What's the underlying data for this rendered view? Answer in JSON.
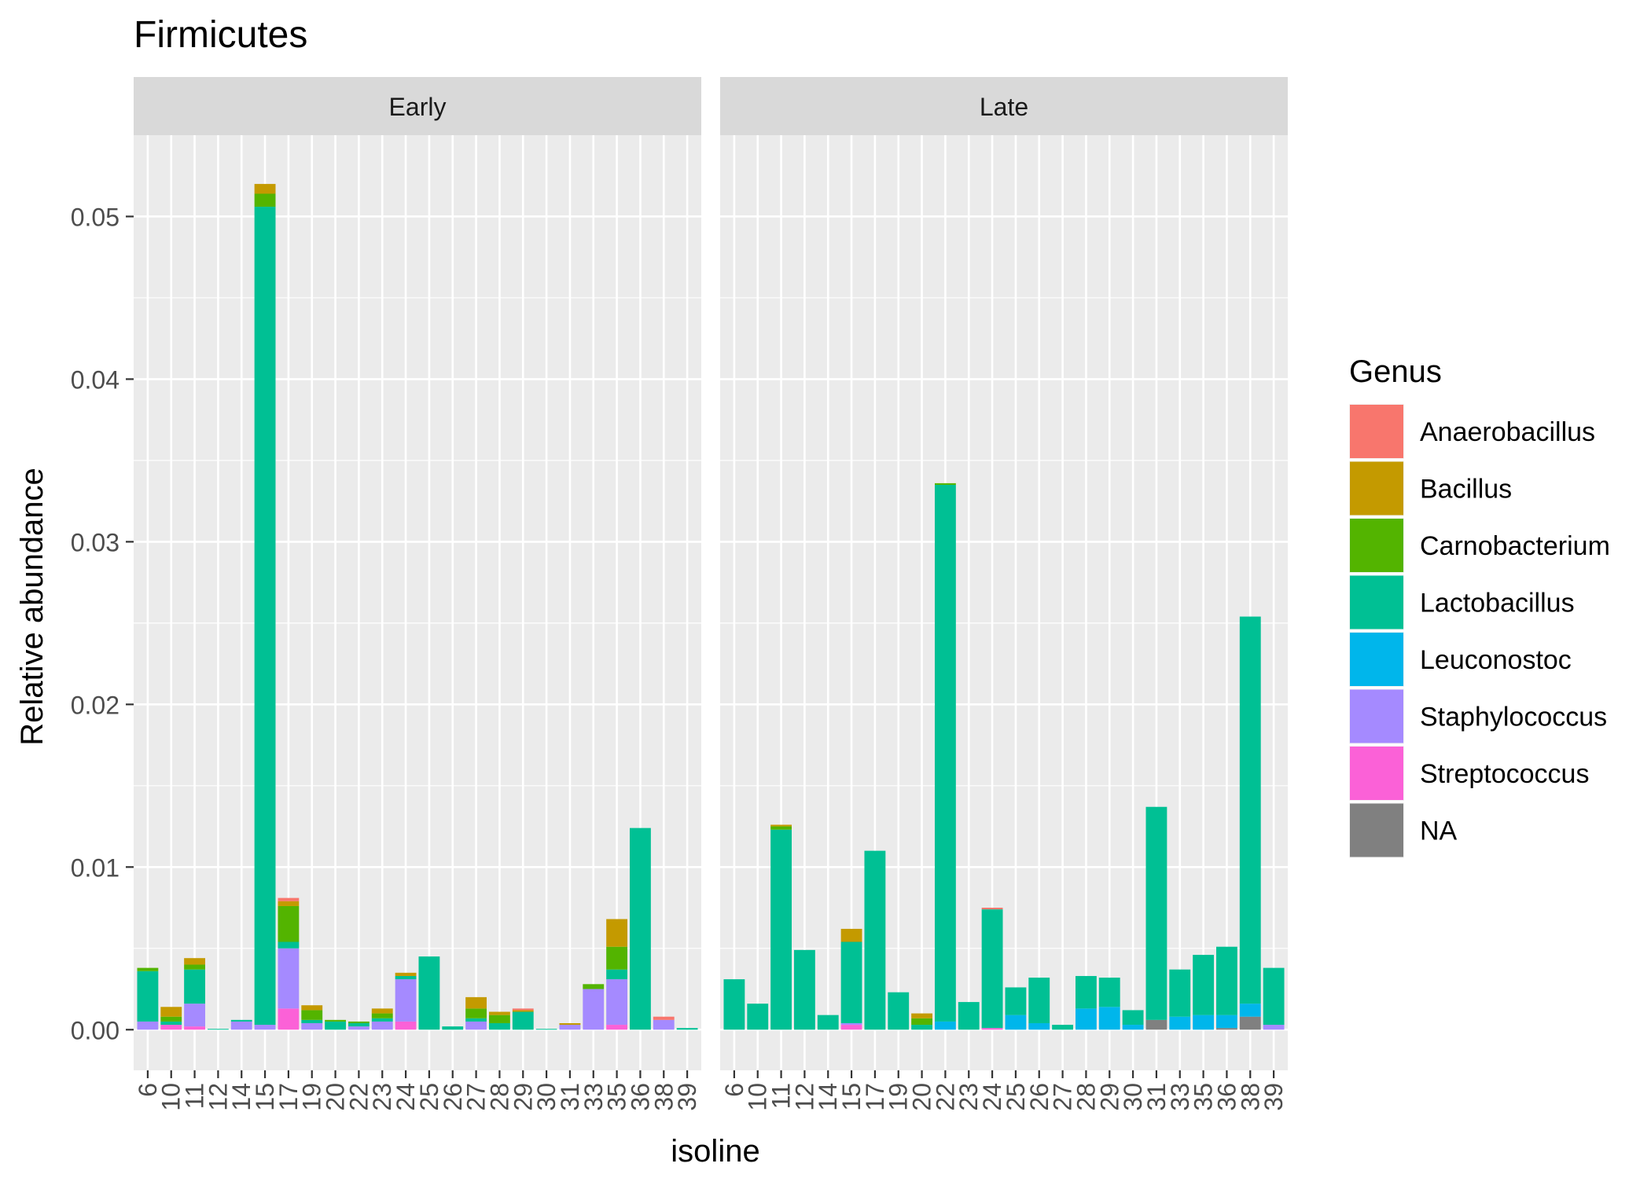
{
  "chart_data": {
    "type": "bar",
    "stacked": true,
    "title": "Firmicutes",
    "xlabel": "isoline",
    "ylabel": "Relative abundance",
    "ylim": [
      -0.0025,
      0.055
    ],
    "y_ticks": [
      "0.00",
      "0.01",
      "0.02",
      "0.03",
      "0.04",
      "0.05"
    ],
    "y_tick_values": [
      0,
      0.01,
      0.02,
      0.03,
      0.04,
      0.05
    ],
    "grid": true,
    "legend": {
      "title": "Genus",
      "position": "right",
      "items": [
        {
          "name": "Anaerobacillus",
          "color": "#F8766D"
        },
        {
          "name": "Bacillus",
          "color": "#C49A00"
        },
        {
          "name": "Carnobacterium",
          "color": "#53B400"
        },
        {
          "name": "Lactobacillus",
          "color": "#00C094"
        },
        {
          "name": "Leuconostoc",
          "color": "#00B6EB"
        },
        {
          "name": "Staphylococcus",
          "color": "#A58AFF"
        },
        {
          "name": "Streptococcus",
          "color": "#FB61D7"
        },
        {
          "name": "NA",
          "color": "#808080"
        }
      ]
    },
    "stack_order_bottom_to_top": [
      "NA",
      "Streptococcus",
      "Staphylococcus",
      "Leuconostoc",
      "Lactobacillus",
      "Carnobacterium",
      "Bacillus",
      "Anaerobacillus"
    ],
    "panels": [
      {
        "label": "Early",
        "categories": [
          "6",
          "10",
          "11",
          "12",
          "14",
          "15",
          "17",
          "19",
          "20",
          "22",
          "23",
          "24",
          "25",
          "26",
          "27",
          "28",
          "29",
          "30",
          "31",
          "33",
          "35",
          "36",
          "38",
          "39"
        ],
        "stacks": [
          {
            "Staphylococcus": 0.0005,
            "Lactobacillus": 0.0031,
            "Carnobacterium": 0.0002
          },
          {
            "Streptococcus": 0.0003,
            "Lactobacillus": 0.0002,
            "Carnobacterium": 0.0003,
            "Bacillus": 0.0006
          },
          {
            "Streptococcus": 0.0002,
            "Staphylococcus": 0.0014,
            "Lactobacillus": 0.0021,
            "Carnobacterium": 0.0003,
            "Bacillus": 0.0004
          },
          {
            "Lactobacillus": 5e-05
          },
          {
            "Staphylococcus": 0.0005,
            "Lactobacillus": 0.0001
          },
          {
            "Staphylococcus": 0.0003,
            "Lactobacillus": 0.0503,
            "Carnobacterium": 0.0008,
            "Bacillus": 0.0006
          },
          {
            "Streptococcus": 0.0013,
            "Staphylococcus": 0.0037,
            "Lactobacillus": 0.0004,
            "Carnobacterium": 0.0022,
            "Bacillus": 0.0003,
            "Anaerobacillus": 0.0002
          },
          {
            "Staphylococcus": 0.0004,
            "Lactobacillus": 0.0002,
            "Carnobacterium": 0.0006,
            "Bacillus": 0.0003
          },
          {
            "Lactobacillus": 0.0005,
            "Carnobacterium": 0.0001
          },
          {
            "Staphylococcus": 0.0002,
            "Lactobacillus": 0.0002,
            "Carnobacterium": 0.0001
          },
          {
            "Staphylococcus": 0.0005,
            "Lactobacillus": 0.0002,
            "Carnobacterium": 0.0003,
            "Bacillus": 0.0003
          },
          {
            "Streptococcus": 0.0005,
            "Staphylococcus": 0.0026,
            "Lactobacillus": 0.0002,
            "Bacillus": 0.0002
          },
          {
            "Lactobacillus": 0.0045
          },
          {
            "Lactobacillus": 0.0002
          },
          {
            "Staphylococcus": 0.0005,
            "Lactobacillus": 0.0002,
            "Carnobacterium": 0.0006,
            "Bacillus": 0.0007
          },
          {
            "Lactobacillus": 0.0004,
            "Carnobacterium": 0.0005,
            "Bacillus": 0.0002
          },
          {
            "Lactobacillus": 0.0011,
            "Bacillus": 0.0001,
            "Anaerobacillus": 0.0001
          },
          {
            "Lactobacillus": 5e-05
          },
          {
            "Staphylococcus": 0.0003,
            "Bacillus": 0.0001
          },
          {
            "Staphylococcus": 0.0025,
            "Carnobacterium": 0.0003
          },
          {
            "Streptococcus": 0.0003,
            "Staphylococcus": 0.0028,
            "Lactobacillus": 0.0006,
            "Carnobacterium": 0.0014,
            "Bacillus": 0.0017
          },
          {
            "Lactobacillus": 0.0124
          },
          {
            "Staphylococcus": 0.0006,
            "Anaerobacillus": 0.0002
          },
          {
            "Lactobacillus": 0.0001
          }
        ]
      },
      {
        "label": "Late",
        "categories": [
          "6",
          "10",
          "11",
          "12",
          "14",
          "15",
          "17",
          "19",
          "20",
          "22",
          "23",
          "24",
          "25",
          "26",
          "27",
          "28",
          "29",
          "30",
          "31",
          "33",
          "35",
          "36",
          "38",
          "39"
        ],
        "stacks": [
          {
            "Lactobacillus": 0.0031
          },
          {
            "Lactobacillus": 0.0016
          },
          {
            "Lactobacillus": 0.0123,
            "Carnobacterium": 0.0002,
            "Bacillus": 0.0001
          },
          {
            "Lactobacillus": 0.0049
          },
          {
            "Lactobacillus": 0.0009
          },
          {
            "Streptococcus": 0.0003,
            "Staphylococcus": 0.0001,
            "Lactobacillus": 0.005,
            "Bacillus": 0.0008
          },
          {
            "Lactobacillus": 0.011
          },
          {
            "Lactobacillus": 0.0023
          },
          {
            "Lactobacillus": 0.0003,
            "Carnobacterium": 0.0004,
            "Bacillus": 0.0003
          },
          {
            "Leuconostoc": 0.0005,
            "Lactobacillus": 0.033,
            "Carnobacterium": 0.0001
          },
          {
            "Lactobacillus": 0.0017
          },
          {
            "Anaerobacillus": 0.0001,
            "Streptococcus": 0.0001,
            "Lactobacillus": 0.0073
          },
          {
            "Leuconostoc": 0.0009,
            "Lactobacillus": 0.0017
          },
          {
            "Leuconostoc": 0.0004,
            "Lactobacillus": 0.0028
          },
          {
            "Lactobacillus": 0.0003
          },
          {
            "Leuconostoc": 0.0013,
            "Lactobacillus": 0.002
          },
          {
            "Leuconostoc": 0.0014,
            "Lactobacillus": 0.0018
          },
          {
            "Leuconostoc": 0.0003,
            "Lactobacillus": 0.0009
          },
          {
            "NA": 0.0006,
            "Lactobacillus": 0.0131
          },
          {
            "Leuconostoc": 0.0008,
            "Lactobacillus": 0.0029
          },
          {
            "Leuconostoc": 0.0009,
            "Lactobacillus": 0.0037
          },
          {
            "NA": 0.0001,
            "Leuconostoc": 0.0008,
            "Lactobacillus": 0.0042
          },
          {
            "NA": 0.0008,
            "Leuconostoc": 0.0008,
            "Lactobacillus": 0.0238
          },
          {
            "Staphylococcus": 0.0003,
            "Lactobacillus": 0.0035
          }
        ]
      }
    ]
  }
}
